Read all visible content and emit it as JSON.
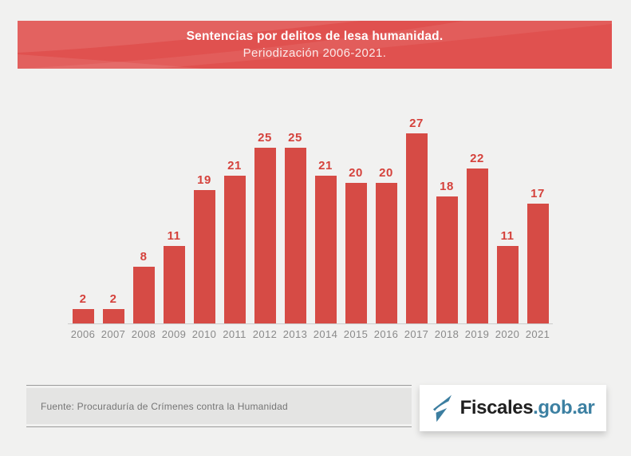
{
  "page": {
    "background": "#f1f1f0"
  },
  "banner": {
    "title": "Sentencias por delitos de lesa humanidad.",
    "subtitle": "Periodización 2006-2021.",
    "background": "#e0514f",
    "text_color": "#ffffff"
  },
  "chart_data": {
    "type": "bar",
    "title": "Sentencias por delitos de lesa humanidad.",
    "subtitle": "Periodización 2006-2021.",
    "categories": [
      "2006",
      "2007",
      "2008",
      "2009",
      "2010",
      "2011",
      "2012",
      "2013",
      "2014",
      "2015",
      "2016",
      "2017",
      "2018",
      "2019",
      "2020",
      "2021"
    ],
    "values": [
      2,
      2,
      8,
      11,
      19,
      21,
      25,
      25,
      21,
      20,
      20,
      27,
      18,
      22,
      11,
      17
    ],
    "xlabel": "",
    "ylabel": "",
    "ylim": [
      0,
      27
    ],
    "grid": false,
    "legend": false,
    "data_labels": true,
    "bar_color": "#d64b45",
    "value_label_color": "#d5423c",
    "axis_label_color": "#8a8a8a"
  },
  "footer": {
    "source": "Fuente: Procuraduría de Crímenes contra la Humanidad"
  },
  "logo": {
    "name": "Fiscales",
    "suffix": ".gob.ar",
    "name_color": "#1f1f1f",
    "suffix_color": "#3c80a2",
    "icon": "fiscales-flag-icon",
    "icon_color": "#3c7ea0"
  }
}
